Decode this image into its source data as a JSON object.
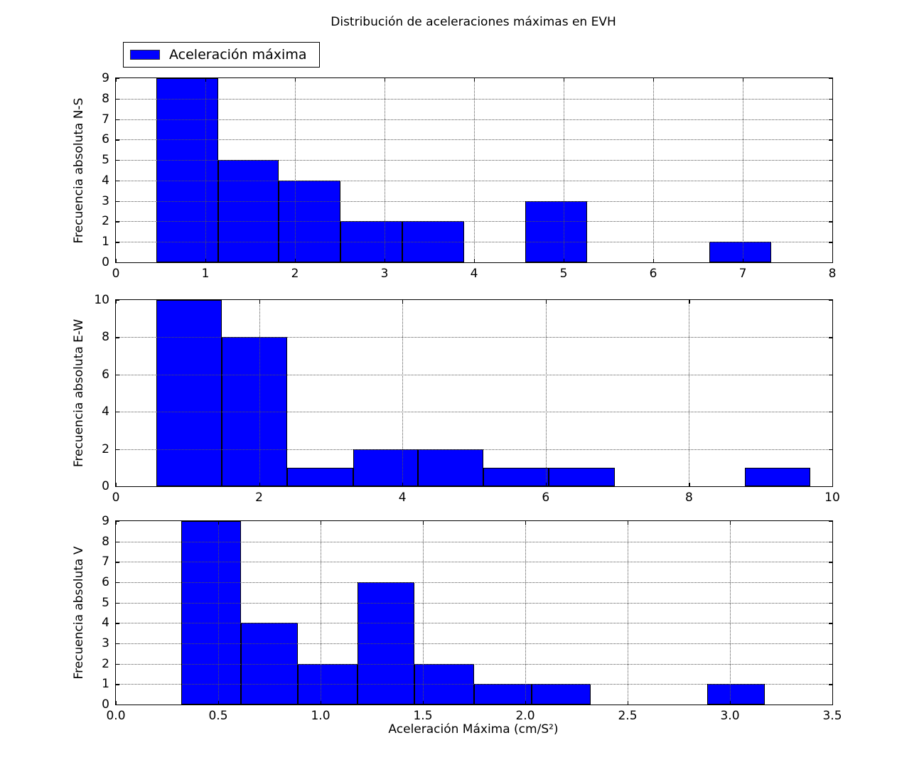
{
  "figure": {
    "title": "Distribución de aceleraciones máximas en EVH",
    "xlabel": "Aceleración Máxima (cm/S²)",
    "legend": {
      "label": "Aceleración máxima",
      "swatch_color": "#0000ff"
    },
    "bar_color": "#0000ff",
    "bar_edge_color": "#000000",
    "grid": "dotted"
  },
  "chart_data": [
    {
      "type": "bar",
      "subtype": "histogram",
      "component": "N-S",
      "ylabel": "Frecuencia absoluta N-S",
      "xlim": [
        0,
        8
      ],
      "ylim": [
        0,
        9
      ],
      "xticks": [
        0,
        1,
        2,
        3,
        4,
        5,
        6,
        7,
        8
      ],
      "x_tick_labels": [
        "0",
        "1",
        "2",
        "3",
        "4",
        "5",
        "6",
        "7",
        "8"
      ],
      "yticks": [
        0,
        1,
        2,
        3,
        4,
        5,
        6,
        7,
        8,
        9
      ],
      "y_tick_labels": [
        "0",
        "1",
        "2",
        "3",
        "4",
        "5",
        "6",
        "7",
        "8",
        "9"
      ],
      "bin_edges": [
        0.45,
        1.14,
        1.82,
        2.51,
        3.2,
        3.89,
        4.57,
        5.26,
        5.95,
        6.63,
        7.32
      ],
      "counts": [
        9,
        5,
        4,
        2,
        2,
        0,
        3,
        0,
        0,
        1
      ]
    },
    {
      "type": "bar",
      "subtype": "histogram",
      "component": "E-W",
      "ylabel": "Frecuencia absoluta E-W",
      "xlim": [
        0,
        10
      ],
      "ylim": [
        0,
        10
      ],
      "xticks": [
        0,
        2,
        4,
        6,
        8,
        10
      ],
      "x_tick_labels": [
        "0",
        "2",
        "4",
        "6",
        "8",
        "10"
      ],
      "yticks": [
        0,
        2,
        4,
        6,
        8,
        10
      ],
      "y_tick_labels": [
        "0",
        "2",
        "4",
        "6",
        "8",
        "10"
      ],
      "bin_edges": [
        0.57,
        1.48,
        2.39,
        3.31,
        4.22,
        5.13,
        6.04,
        6.96,
        7.87,
        8.78,
        9.69
      ],
      "counts": [
        10,
        8,
        1,
        2,
        2,
        1,
        1,
        0,
        0,
        1
      ]
    },
    {
      "type": "bar",
      "subtype": "histogram",
      "component": "V",
      "ylabel": "Frecuencia absoluta V",
      "xlim": [
        0,
        3.5
      ],
      "ylim": [
        0,
        9
      ],
      "xticks": [
        0,
        0.5,
        1.0,
        1.5,
        2.0,
        2.5,
        3.0,
        3.5
      ],
      "x_tick_labels": [
        "0.0",
        "0.5",
        "1.0",
        "1.5",
        "2.0",
        "2.5",
        "3.0",
        "3.5"
      ],
      "yticks": [
        0,
        1,
        2,
        3,
        4,
        5,
        6,
        7,
        8,
        9
      ],
      "y_tick_labels": [
        "0",
        "1",
        "2",
        "3",
        "4",
        "5",
        "6",
        "7",
        "8",
        "9"
      ],
      "bin_edges": [
        0.32,
        0.61,
        0.89,
        1.18,
        1.46,
        1.75,
        2.03,
        2.32,
        2.6,
        2.89,
        3.17
      ],
      "counts": [
        9,
        4,
        2,
        6,
        2,
        1,
        1,
        0,
        0,
        1
      ]
    }
  ]
}
